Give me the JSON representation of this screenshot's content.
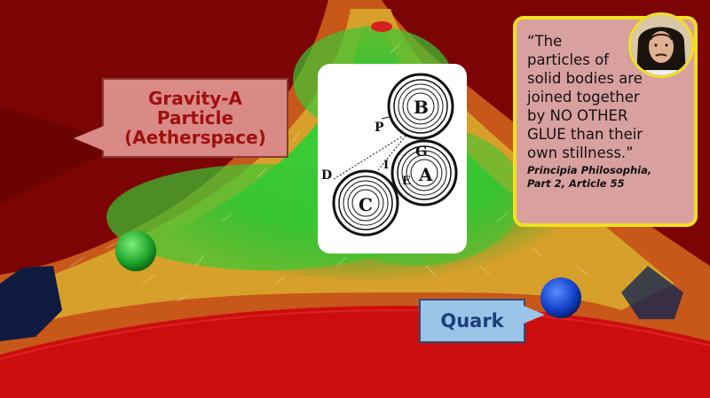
{
  "gravity_callout": {
    "text": "Gravity-A\nParticle\n(Aetherspace)"
  },
  "diagram": {
    "labels": {
      "b": "B",
      "p": "P",
      "g": "G",
      "i": "I",
      "d": "D",
      "a": "A",
      "e": "E",
      "c": "C"
    }
  },
  "quote": {
    "text": "“The\nparticles of\nsolid bodies are\njoined together\nby NO OTHER\nGLUE than their\nown stillness.”",
    "source": "Principia Philosophia,\nPart 2, Article 55"
  },
  "quark_callout": {
    "text": "Quark"
  }
}
